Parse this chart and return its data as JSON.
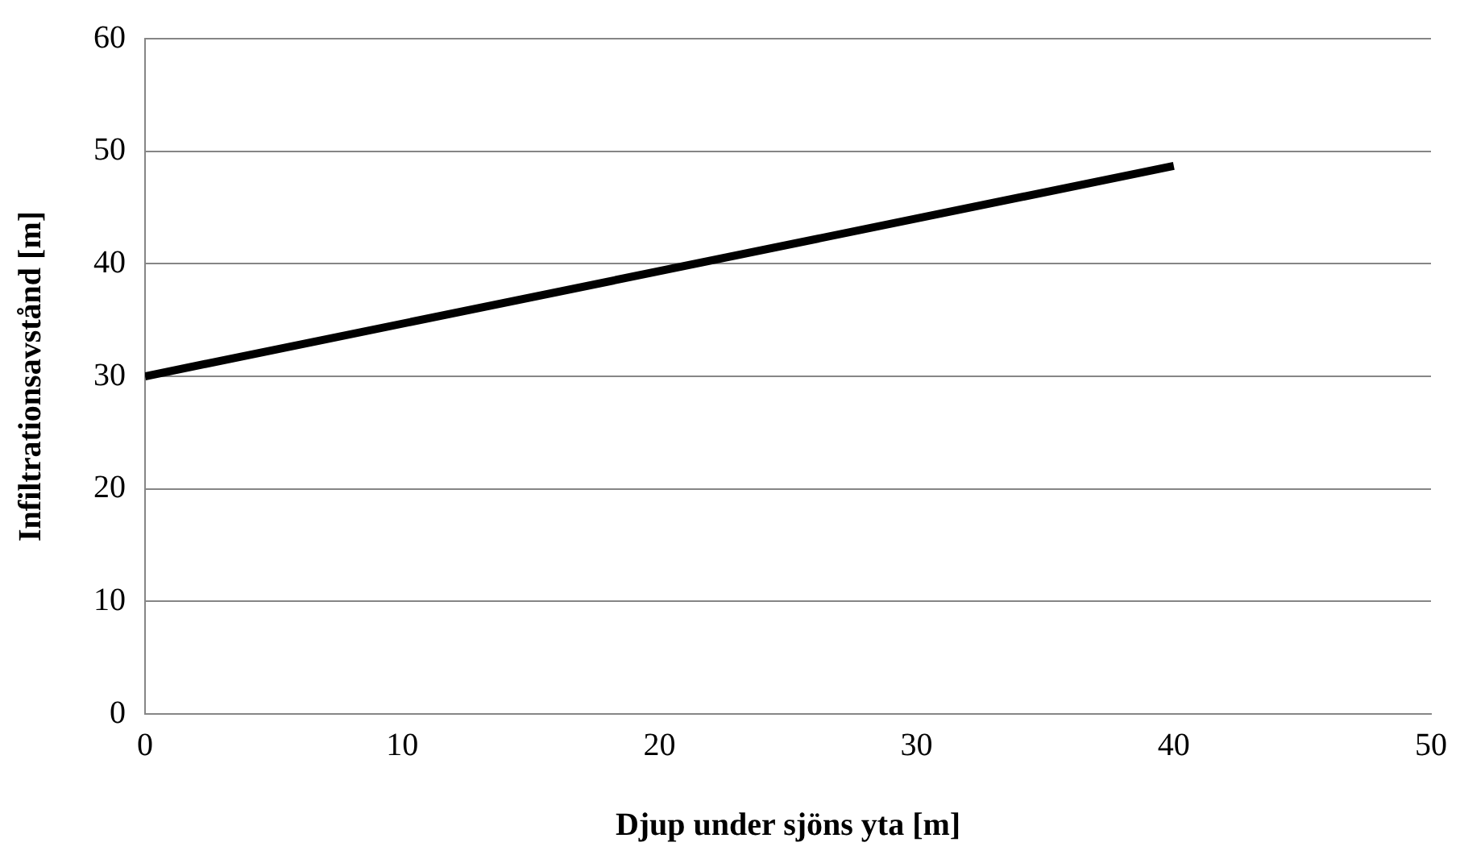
{
  "chart_data": {
    "type": "line",
    "xlabel": "Djup under sjöns yta [m]",
    "ylabel": "Infiltrationsavstånd [m]",
    "x": [
      0,
      40
    ],
    "series": [
      {
        "color": "#000000",
        "values": [
          30,
          48.7
        ]
      }
    ],
    "xlim": [
      0,
      50
    ],
    "xticks": [
      0,
      10,
      20,
      30,
      40,
      50
    ],
    "ylim": [
      0,
      60
    ],
    "yticks": [
      0,
      10,
      20,
      30,
      40,
      50,
      60
    ],
    "grid": "y",
    "legend": false,
    "marker": "none",
    "line_style": "solid"
  }
}
